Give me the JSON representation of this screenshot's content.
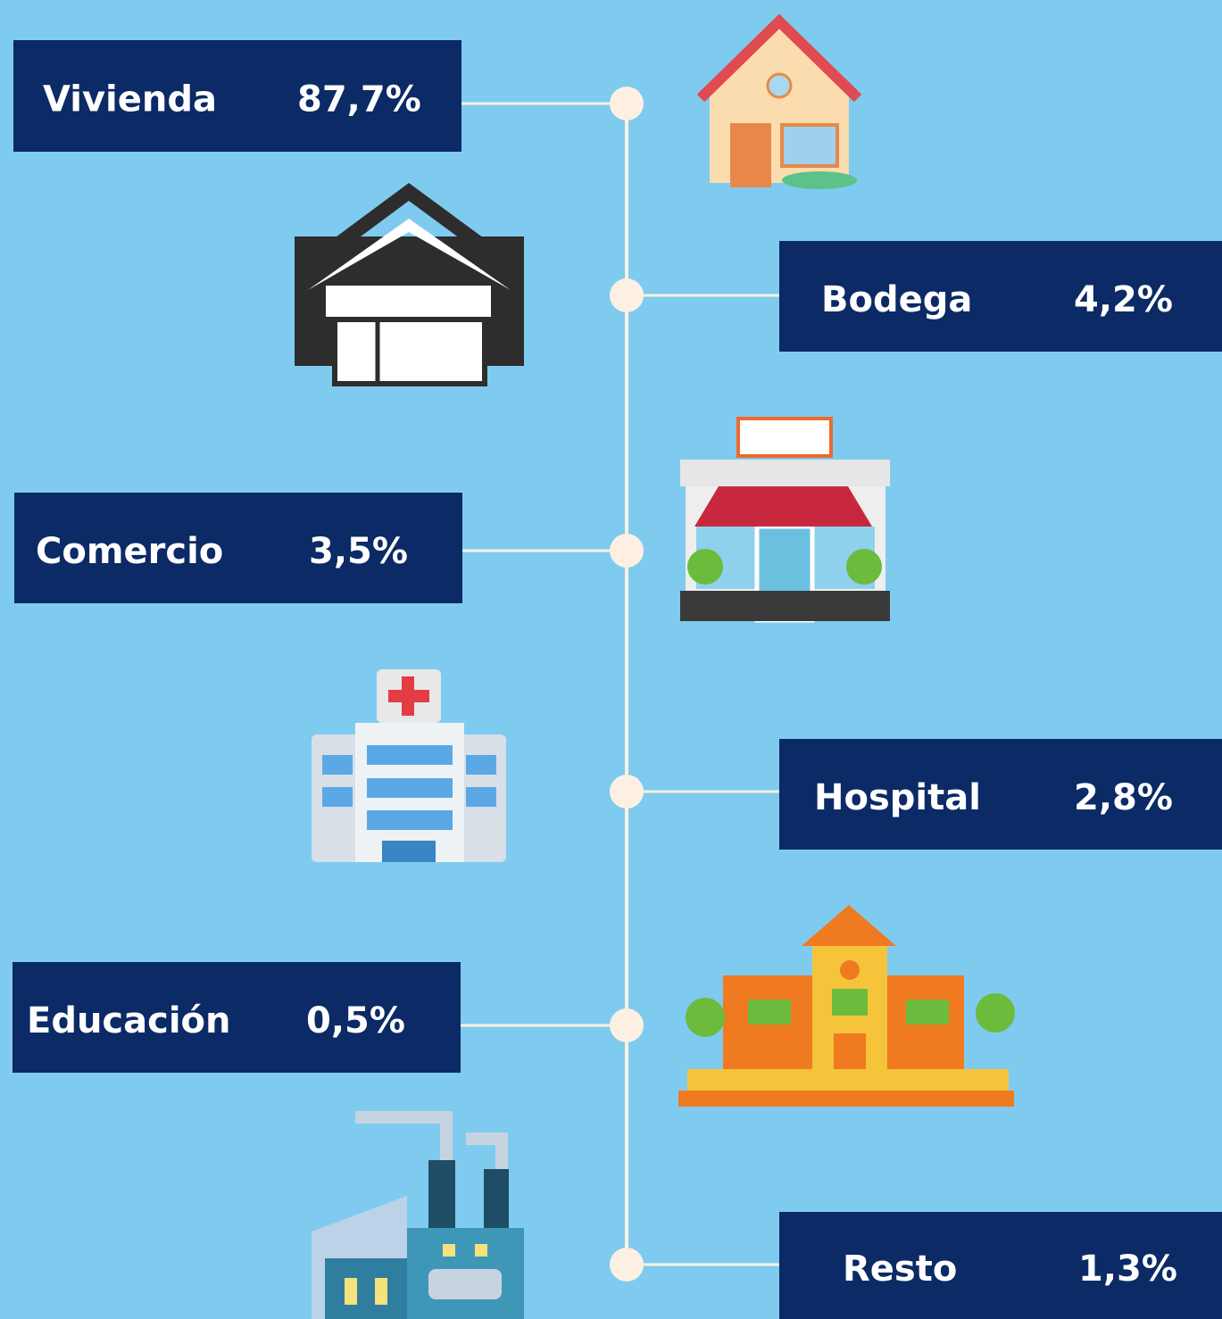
{
  "items": [
    {
      "label": "Vivienda",
      "value": "87,7%"
    },
    {
      "label": "Bodega",
      "value": "4,2%"
    },
    {
      "label": "Comercio",
      "value": "3,5%"
    },
    {
      "label": "Hospital",
      "value": "2,8%"
    },
    {
      "label": "Educación",
      "value": "0,5%"
    },
    {
      "label": "Resto",
      "value": "1,3%"
    }
  ]
}
